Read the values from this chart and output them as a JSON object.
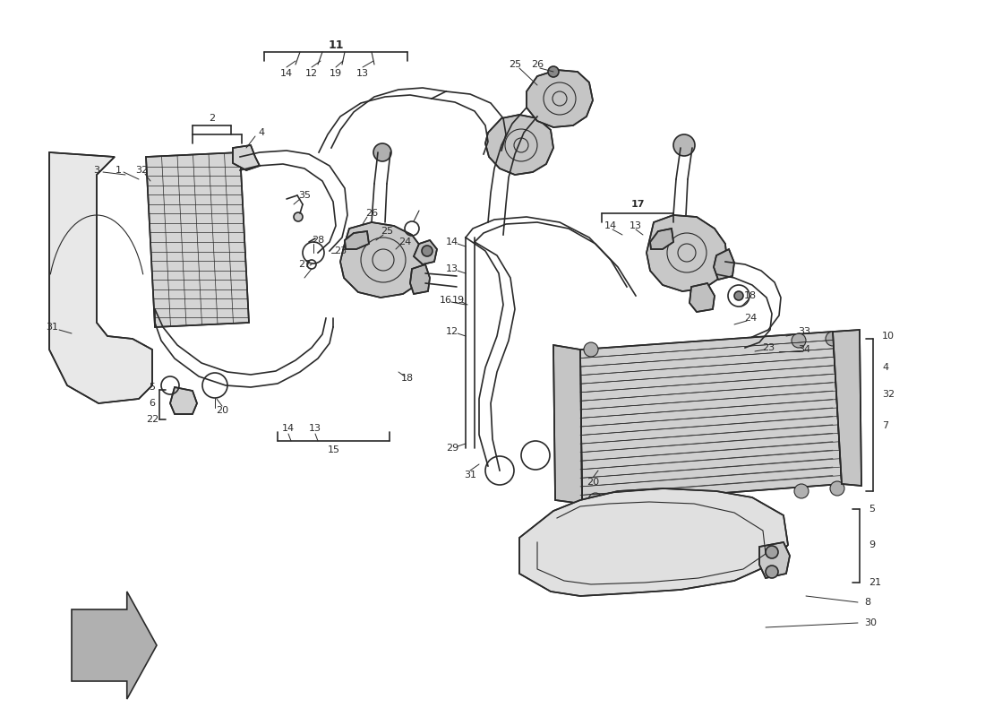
{
  "bg_color": "#ffffff",
  "line_color": "#2a2a2a",
  "figsize": [
    11.0,
    8.0
  ],
  "dpi": 100
}
